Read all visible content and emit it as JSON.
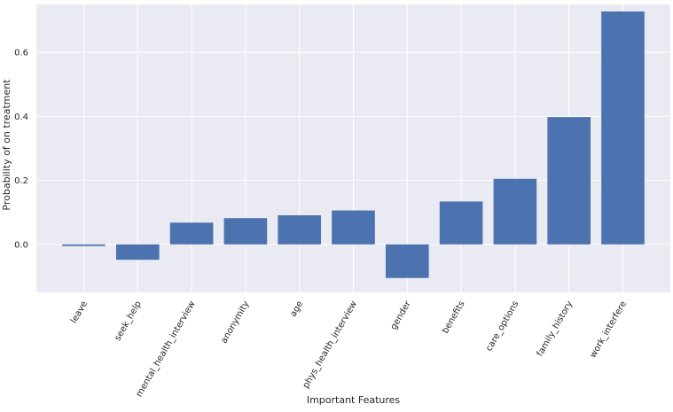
{
  "chart_data": {
    "type": "bar",
    "title": "",
    "xlabel": "Important Features",
    "ylabel": "Probability of on treatment",
    "categories": [
      "leave",
      "seek_help",
      "mental_health_interview",
      "anonymity",
      "age",
      "phys_health_interview",
      "gender",
      "benefits",
      "care_options",
      "family_history",
      "work_interfere"
    ],
    "values": [
      -0.005,
      -0.048,
      0.068,
      0.082,
      0.091,
      0.106,
      -0.105,
      0.134,
      0.205,
      0.398,
      0.728
    ],
    "ylim": [
      -0.15,
      0.75
    ],
    "yticks": [
      0.0,
      0.2,
      0.4,
      0.6
    ],
    "ytick_labels": [
      "0.0",
      "0.2",
      "0.4",
      "0.6"
    ],
    "grid": true,
    "legend": "none",
    "colors": {
      "bar": "#4c72b0",
      "plot_background": "#eaeaf2",
      "grid": "#ffffff",
      "text": "#262626"
    }
  }
}
